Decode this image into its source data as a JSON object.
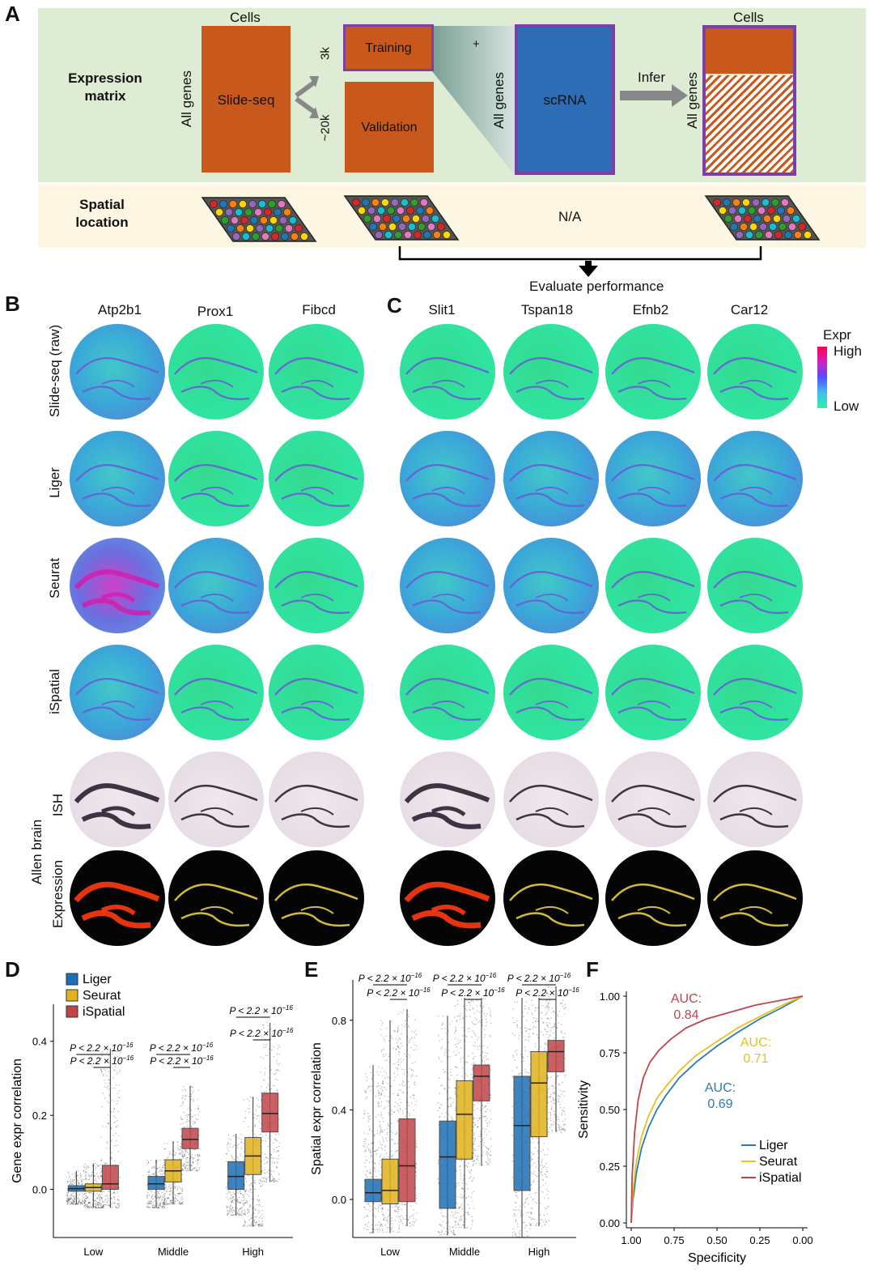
{
  "panel_labels": {
    "a": "A",
    "b": "B",
    "c": "C",
    "d": "D",
    "e": "E",
    "f": "F"
  },
  "panel_a": {
    "expression_matrix": "Expression\nmatrix",
    "spatial_location": "Spatial\nlocation",
    "cells_left": "Cells",
    "cells_right": "Cells",
    "all_genes_1": "All genes",
    "all_genes_2": "All genes",
    "all_genes_3": "All genes",
    "slideseq": "Slide-seq",
    "training": "Training",
    "validation": "Validation",
    "k3": "3k",
    "k20": "~20k",
    "plus": "+",
    "scrna": "scRNA",
    "infer": "Infer",
    "na": "N/A",
    "evaluate": "Evaluate performance"
  },
  "panel_b": {
    "genes": [
      "Atp2b1",
      "Prox1",
      "Fibcd"
    ]
  },
  "panel_c": {
    "genes": [
      "Slit1",
      "Tspan18",
      "Efnb2",
      "Car12"
    ]
  },
  "rows": [
    "Slide-seq (raw)",
    "Liger",
    "Seurat",
    "iSpatial",
    "ISH",
    "Expression"
  ],
  "allen_brain": "Allen brain",
  "legend_expr": {
    "title": "Expr",
    "high": "High",
    "low": "Low"
  },
  "chart_data": [
    {
      "type": "box",
      "panel": "D",
      "ylabel": "Gene expr correlation",
      "categories": [
        "Low",
        "Middle",
        "High"
      ],
      "ylim": [
        -0.13,
        0.5
      ],
      "yticks": [
        0.0,
        0.2,
        0.4
      ],
      "series": [
        {
          "name": "Liger",
          "color": "#1f6fb5",
          "boxes": [
            {
              "q1": -0.005,
              "median": 0.002,
              "q3": 0.01,
              "lo": -0.04,
              "hi": 0.05
            },
            {
              "q1": 0.0,
              "median": 0.015,
              "q3": 0.035,
              "lo": -0.05,
              "hi": 0.08
            },
            {
              "q1": 0.0,
              "median": 0.035,
              "q3": 0.075,
              "lo": -0.07,
              "hi": 0.15
            }
          ]
        },
        {
          "name": "Seurat",
          "color": "#e0b21c",
          "boxes": [
            {
              "q1": -0.005,
              "median": 0.005,
              "q3": 0.015,
              "lo": -0.05,
              "hi": 0.07
            },
            {
              "q1": 0.02,
              "median": 0.05,
              "q3": 0.08,
              "lo": -0.04,
              "hi": 0.13
            },
            {
              "q1": 0.04,
              "median": 0.09,
              "q3": 0.14,
              "lo": -0.1,
              "hi": 0.25
            }
          ]
        },
        {
          "name": "iSpatial",
          "color": "#c0454a",
          "boxes": [
            {
              "q1": 0.0,
              "median": 0.015,
              "q3": 0.065,
              "lo": -0.05,
              "hi": 0.38
            },
            {
              "q1": 0.11,
              "median": 0.135,
              "q3": 0.165,
              "lo": 0.05,
              "hi": 0.28
            },
            {
              "q1": 0.155,
              "median": 0.205,
              "q3": 0.26,
              "lo": 0.02,
              "hi": 0.45
            }
          ]
        }
      ],
      "pvalue": "P < 2.2 × 10",
      "pexp": "−16"
    },
    {
      "type": "box",
      "panel": "E",
      "ylabel": "Spatial expr correlation",
      "categories": [
        "Low",
        "Middle",
        "High"
      ],
      "ylim": [
        -0.17,
        0.98
      ],
      "yticks": [
        0.0,
        0.4,
        0.8
      ],
      "series": [
        {
          "name": "Liger",
          "color": "#1f6fb5",
          "boxes": [
            {
              "q1": -0.01,
              "median": 0.03,
              "q3": 0.09,
              "lo": -0.15,
              "hi": 0.6
            },
            {
              "q1": -0.04,
              "median": 0.19,
              "q3": 0.35,
              "lo": -0.16,
              "hi": 0.82
            },
            {
              "q1": 0.04,
              "median": 0.33,
              "q3": 0.55,
              "lo": -0.17,
              "hi": 0.9
            }
          ]
        },
        {
          "name": "Seurat",
          "color": "#e0b21c",
          "boxes": [
            {
              "q1": -0.02,
              "median": 0.04,
              "q3": 0.18,
              "lo": -0.15,
              "hi": 0.8
            },
            {
              "q1": 0.18,
              "median": 0.38,
              "q3": 0.53,
              "lo": -0.13,
              "hi": 0.9
            },
            {
              "q1": 0.28,
              "median": 0.52,
              "q3": 0.66,
              "lo": -0.12,
              "hi": 0.9
            }
          ]
        },
        {
          "name": "iSpatial",
          "color": "#c0454a",
          "boxes": [
            {
              "q1": -0.01,
              "median": 0.15,
              "q3": 0.36,
              "lo": -0.12,
              "hi": 0.85
            },
            {
              "q1": 0.44,
              "median": 0.55,
              "q3": 0.6,
              "lo": 0.15,
              "hi": 0.9
            },
            {
              "q1": 0.57,
              "median": 0.66,
              "q3": 0.71,
              "lo": 0.3,
              "hi": 0.95
            }
          ]
        }
      ],
      "pvalue": "P < 2.2 × 10",
      "pexp": "−16"
    },
    {
      "type": "line",
      "panel": "F",
      "xlabel": "Specificity",
      "ylabel": "Sensitivity",
      "xlim": [
        1.0,
        0.0
      ],
      "ylim": [
        0.0,
        1.0
      ],
      "xticks": [
        "1.00",
        "0.75",
        "0.50",
        "0.25",
        "0.00"
      ],
      "yticks": [
        "0.00",
        "0.25",
        "0.50",
        "0.75",
        "1.00"
      ],
      "series": [
        {
          "name": "Liger",
          "color": "#2a7ab8",
          "auc": "AUC:\n0.69",
          "x": [
            1.0,
            0.99,
            0.97,
            0.94,
            0.9,
            0.85,
            0.8,
            0.72,
            0.62,
            0.5,
            0.38,
            0.25,
            0.12,
            0.0
          ],
          "y": [
            0.0,
            0.1,
            0.22,
            0.33,
            0.42,
            0.5,
            0.56,
            0.64,
            0.71,
            0.78,
            0.84,
            0.9,
            0.95,
            1.0
          ]
        },
        {
          "name": "Seurat",
          "color": "#e8c21a",
          "auc": "AUC:\n0.71",
          "x": [
            1.0,
            0.99,
            0.97,
            0.94,
            0.9,
            0.85,
            0.8,
            0.72,
            0.62,
            0.5,
            0.38,
            0.25,
            0.12,
            0.0
          ],
          "y": [
            0.0,
            0.14,
            0.27,
            0.38,
            0.47,
            0.55,
            0.6,
            0.67,
            0.74,
            0.8,
            0.86,
            0.91,
            0.96,
            1.0
          ]
        },
        {
          "name": "iSpatial",
          "color": "#c0454a",
          "auc": "AUC:\n0.84",
          "x": [
            1.0,
            0.995,
            0.98,
            0.96,
            0.93,
            0.89,
            0.84,
            0.77,
            0.68,
            0.56,
            0.42,
            0.28,
            0.14,
            0.0
          ],
          "y": [
            0.0,
            0.2,
            0.4,
            0.54,
            0.64,
            0.71,
            0.76,
            0.81,
            0.86,
            0.9,
            0.93,
            0.96,
            0.98,
            1.0
          ]
        }
      ]
    }
  ]
}
